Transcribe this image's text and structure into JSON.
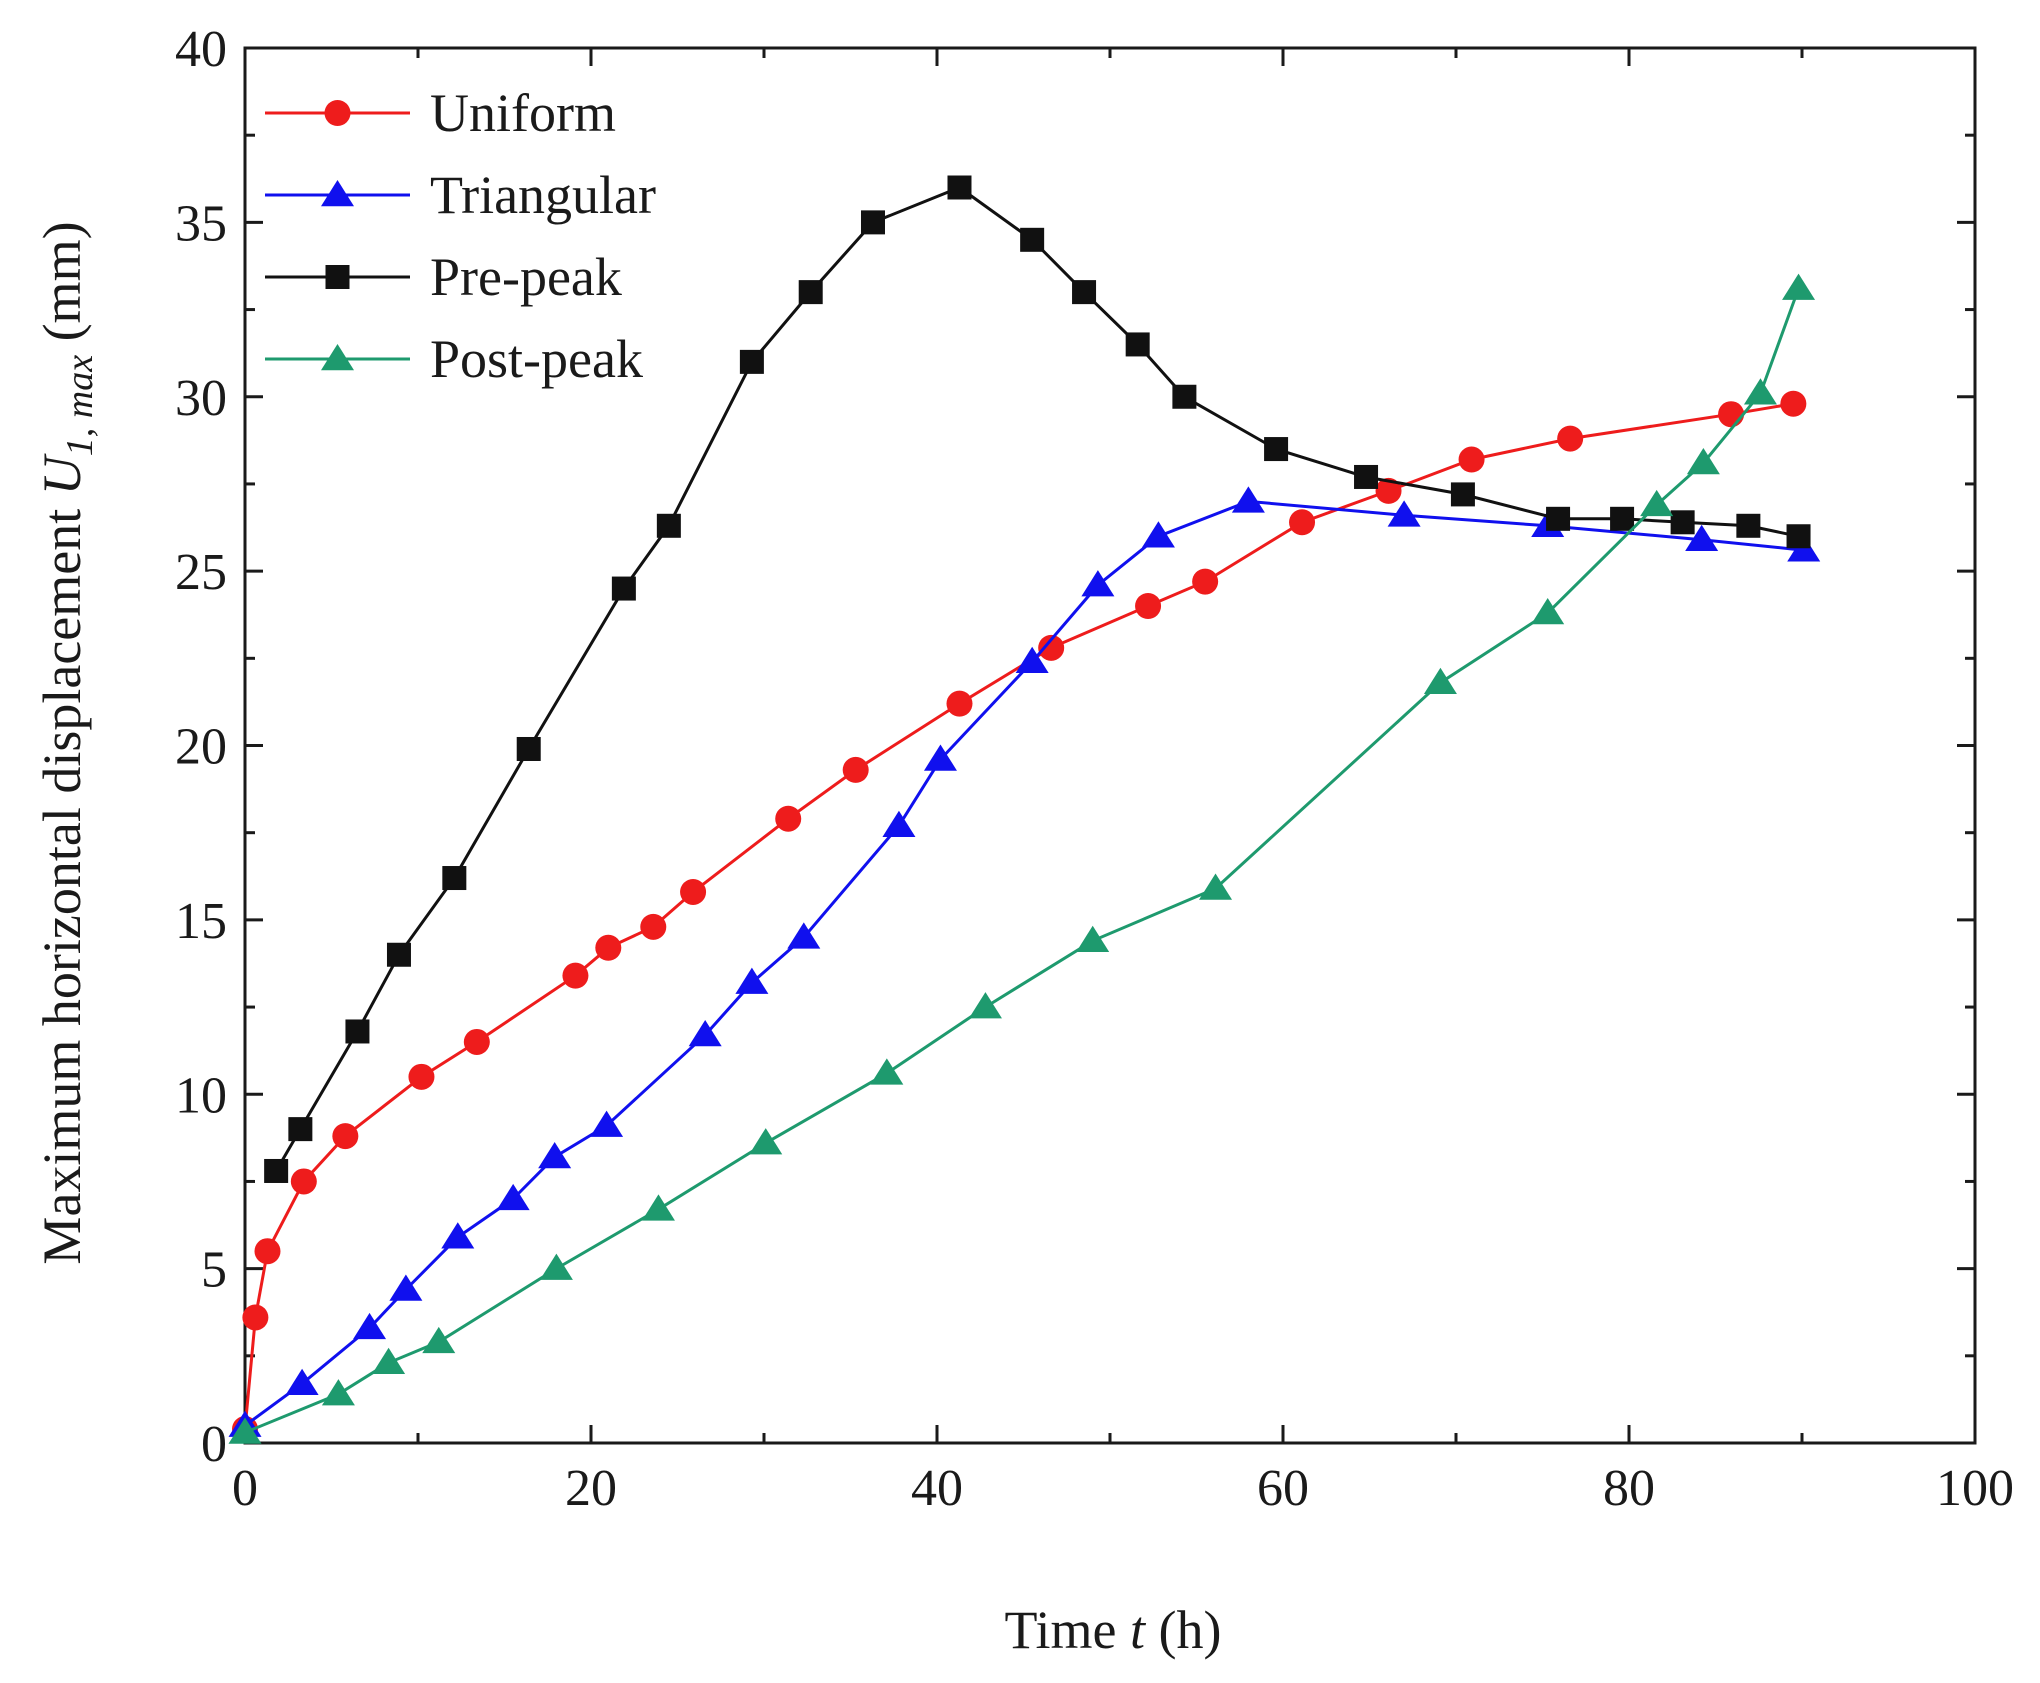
{
  "chart_data": {
    "type": "line",
    "title": "",
    "xlabel": {
      "pre": "Time ",
      "var": "t",
      "post": " (h)"
    },
    "ylabel": {
      "pre": "Maximum horizontal displacement ",
      "var": "U",
      "sub": "1, max",
      "post": " (mm)"
    },
    "xlim": [
      0,
      100
    ],
    "ylim": [
      0,
      40
    ],
    "xticks": [
      0,
      20,
      40,
      60,
      80,
      100
    ],
    "yticks": [
      0,
      5,
      10,
      15,
      20,
      25,
      30,
      35,
      40
    ],
    "xtick_labels": [
      "0",
      "20",
      "40",
      "60",
      "80",
      "100"
    ],
    "ytick_labels": [
      "0",
      "5",
      "10",
      "15",
      "20",
      "25",
      "30",
      "35",
      "40"
    ],
    "grid": false,
    "legend_position": "top-left",
    "series": [
      {
        "name": "Uniform",
        "color": "#ee1c1c",
        "marker": "circle",
        "x": [
          0,
          0.6,
          1.3,
          3.4,
          5.8,
          10.2,
          13.4,
          19.1,
          21,
          23.6,
          25.9,
          31.4,
          35.3,
          41.3,
          46.6,
          52.2,
          55.5,
          61.1,
          66.1,
          70.9,
          76.6,
          85.9,
          89.5
        ],
        "y": [
          0.4,
          3.6,
          5.5,
          7.5,
          8.8,
          10.5,
          11.5,
          13.4,
          14.2,
          14.8,
          15.8,
          17.9,
          19.3,
          21.2,
          22.8,
          24.0,
          24.7,
          26.4,
          27.3,
          28.2,
          28.8,
          29.5,
          29.8
        ]
      },
      {
        "name": "Triangular",
        "color": "#1010ee",
        "marker": "triangle",
        "x": [
          0,
          3.3,
          7.2,
          9.3,
          12.3,
          15.5,
          17.9,
          20.9,
          26.6,
          29.3,
          32.3,
          37.8,
          40.2,
          45.5,
          49.3,
          52.8,
          58.0,
          67.0,
          75.3,
          84.2,
          90.1
        ],
        "y": [
          0.5,
          1.7,
          3.3,
          4.4,
          5.9,
          7.0,
          8.2,
          9.1,
          11.7,
          13.2,
          14.5,
          17.7,
          19.6,
          22.4,
          24.6,
          26.0,
          27.0,
          26.6,
          26.3,
          25.9,
          25.6
        ]
      },
      {
        "name": "Pre-peak",
        "color": "#111111",
        "marker": "square",
        "x": [
          1.8,
          3.2,
          6.5,
          8.9,
          12.1,
          16.4,
          21.9,
          24.5,
          29.3,
          32.7,
          36.3,
          41.3,
          45.5,
          48.5,
          51.6,
          54.3,
          59.6,
          64.8,
          70.4,
          75.9,
          79.6,
          83.1,
          86.9,
          89.8
        ],
        "y": [
          7.8,
          9.0,
          11.8,
          14.0,
          16.2,
          19.9,
          24.5,
          26.3,
          31.0,
          33.0,
          35.0,
          36.0,
          34.5,
          33.0,
          31.5,
          30.0,
          28.5,
          27.7,
          27.2,
          26.5,
          26.5,
          26.4,
          26.3,
          26.0
        ]
      },
      {
        "name": "Post-peak",
        "color": "#1e9a6e",
        "marker": "triangle",
        "x": [
          0,
          5.4,
          8.3,
          11.2,
          18.0,
          23.9,
          30.1,
          37.1,
          42.8,
          49.0,
          56.1,
          69.1,
          75.3,
          81.6,
          84.3,
          87.6,
          89.8
        ],
        "y": [
          0.3,
          1.4,
          2.3,
          2.9,
          5.0,
          6.7,
          8.6,
          10.6,
          12.5,
          14.4,
          15.9,
          21.8,
          23.8,
          26.9,
          28.1,
          30.1,
          33.1
        ]
      }
    ]
  }
}
